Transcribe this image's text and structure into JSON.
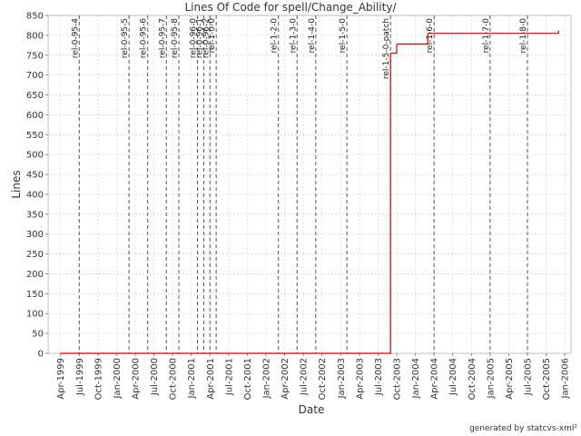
{
  "chart_data": {
    "type": "step",
    "title": "Lines Of Code for spell/Change_Ability/",
    "x_label": "Date",
    "y_label": "Lines",
    "footer": "generated by statcvs-xml²",
    "grid": true,
    "xlim": [
      "1999-02",
      "2006-02"
    ],
    "xticks": [
      {
        "value": "1999-04",
        "label": "Apr-1999"
      },
      {
        "value": "1999-07",
        "label": "Jul-1999"
      },
      {
        "value": "1999-10",
        "label": "Oct-1999"
      },
      {
        "value": "2000-01",
        "label": "Jan-2000"
      },
      {
        "value": "2000-04",
        "label": "Apr-2000"
      },
      {
        "value": "2000-07",
        "label": "Jul-2000"
      },
      {
        "value": "2000-10",
        "label": "Oct-2000"
      },
      {
        "value": "2001-01",
        "label": "Jan-2001"
      },
      {
        "value": "2001-04",
        "label": "Apr-2001"
      },
      {
        "value": "2001-07",
        "label": "Jul-2001"
      },
      {
        "value": "2001-10",
        "label": "Oct-2001"
      },
      {
        "value": "2002-01",
        "label": "Jan-2002"
      },
      {
        "value": "2002-04",
        "label": "Apr-2002"
      },
      {
        "value": "2002-07",
        "label": "Jul-2002"
      },
      {
        "value": "2002-10",
        "label": "Oct-2002"
      },
      {
        "value": "2003-01",
        "label": "Jan-2003"
      },
      {
        "value": "2003-04",
        "label": "Apr-2003"
      },
      {
        "value": "2003-07",
        "label": "Jul-2003"
      },
      {
        "value": "2003-10",
        "label": "Oct-2003"
      },
      {
        "value": "2004-01",
        "label": "Jan-2004"
      },
      {
        "value": "2004-04",
        "label": "Apr-2004"
      },
      {
        "value": "2004-07",
        "label": "Jul-2004"
      },
      {
        "value": "2004-10",
        "label": "Oct-2004"
      },
      {
        "value": "2005-01",
        "label": "Jan-2005"
      },
      {
        "value": "2005-04",
        "label": "Apr-2005"
      },
      {
        "value": "2005-07",
        "label": "Jul-2005"
      },
      {
        "value": "2005-10",
        "label": "Oct-2005"
      },
      {
        "value": "2006-01",
        "label": "Jan-2006"
      }
    ],
    "ylim": [
      0,
      850
    ],
    "yticks": [
      0,
      50,
      100,
      150,
      200,
      250,
      300,
      350,
      400,
      450,
      500,
      550,
      600,
      650,
      700,
      750,
      800,
      850
    ],
    "series": [
      {
        "color": "#cc0000",
        "x": [
          "1999-04",
          "2003-09",
          "2003-10",
          "2004-03",
          "2005-12"
        ],
        "values": [
          0,
          755,
          778,
          805,
          812
        ]
      }
    ],
    "markers": [
      {
        "label": "rel-0-95-4",
        "x": "1999-07"
      },
      {
        "label": "rel-0-95-5",
        "x": "2000-03"
      },
      {
        "label": "rel-0-95-6",
        "x": "2000-06"
      },
      {
        "label": "rel-0-95-7",
        "x": "2000-09"
      },
      {
        "label": "rel-0-95-8",
        "x": "2000-11"
      },
      {
        "label": "rel-0-96-0",
        "x": "2001-02"
      },
      {
        "label": "rel-0-96-1",
        "x": "2001-03"
      },
      {
        "label": "rel-0-96-2",
        "x": "2001-04"
      },
      {
        "label": "rel-1-0-0",
        "x": "2001-05"
      },
      {
        "label": "rel-1-2-0",
        "x": "2002-03"
      },
      {
        "label": "rel-1-3-0",
        "x": "2002-06"
      },
      {
        "label": "rel-1-4-0",
        "x": "2002-09"
      },
      {
        "label": "rel-1-5-0",
        "x": "2003-02"
      },
      {
        "label": "rel-1-5-0-patch",
        "x": "2003-09"
      },
      {
        "label": "rel-1-6-0",
        "x": "2004-04"
      },
      {
        "label": "rel-1-7-0",
        "x": "2005-01"
      },
      {
        "label": "rel-1-8-0",
        "x": "2005-07"
      }
    ]
  }
}
